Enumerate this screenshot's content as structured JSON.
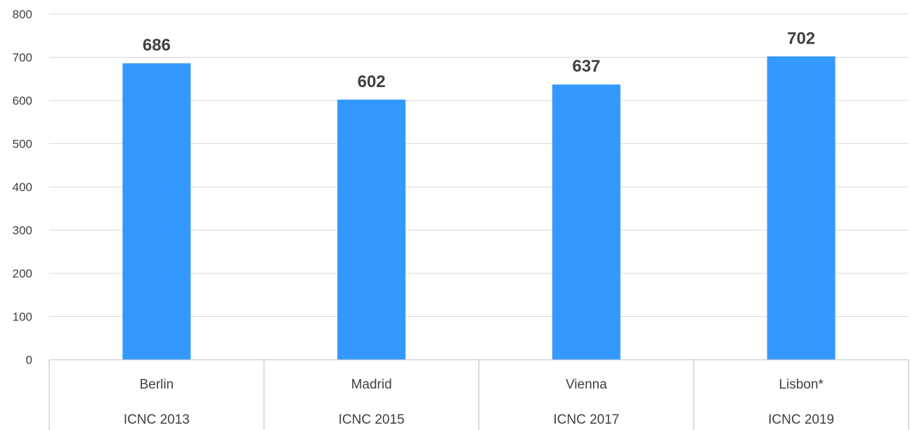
{
  "chart_data": {
    "type": "bar",
    "categories": [
      {
        "city": "Berlin",
        "event": "ICNC 2013"
      },
      {
        "city": "Madrid",
        "event": "ICNC 2015"
      },
      {
        "city": "Vienna",
        "event": "ICNC 2017"
      },
      {
        "city": "Lisbon*",
        "event": "ICNC 2019"
      }
    ],
    "values": [
      686,
      602,
      637,
      702
    ],
    "title": "",
    "xlabel": "",
    "ylabel": "",
    "ylim": [
      0,
      800
    ],
    "yticks": [
      0,
      100,
      200,
      300,
      400,
      500,
      600,
      700,
      800
    ],
    "grid": true,
    "legend": "none",
    "bar_color": "#3399ff",
    "data_labels": true
  }
}
